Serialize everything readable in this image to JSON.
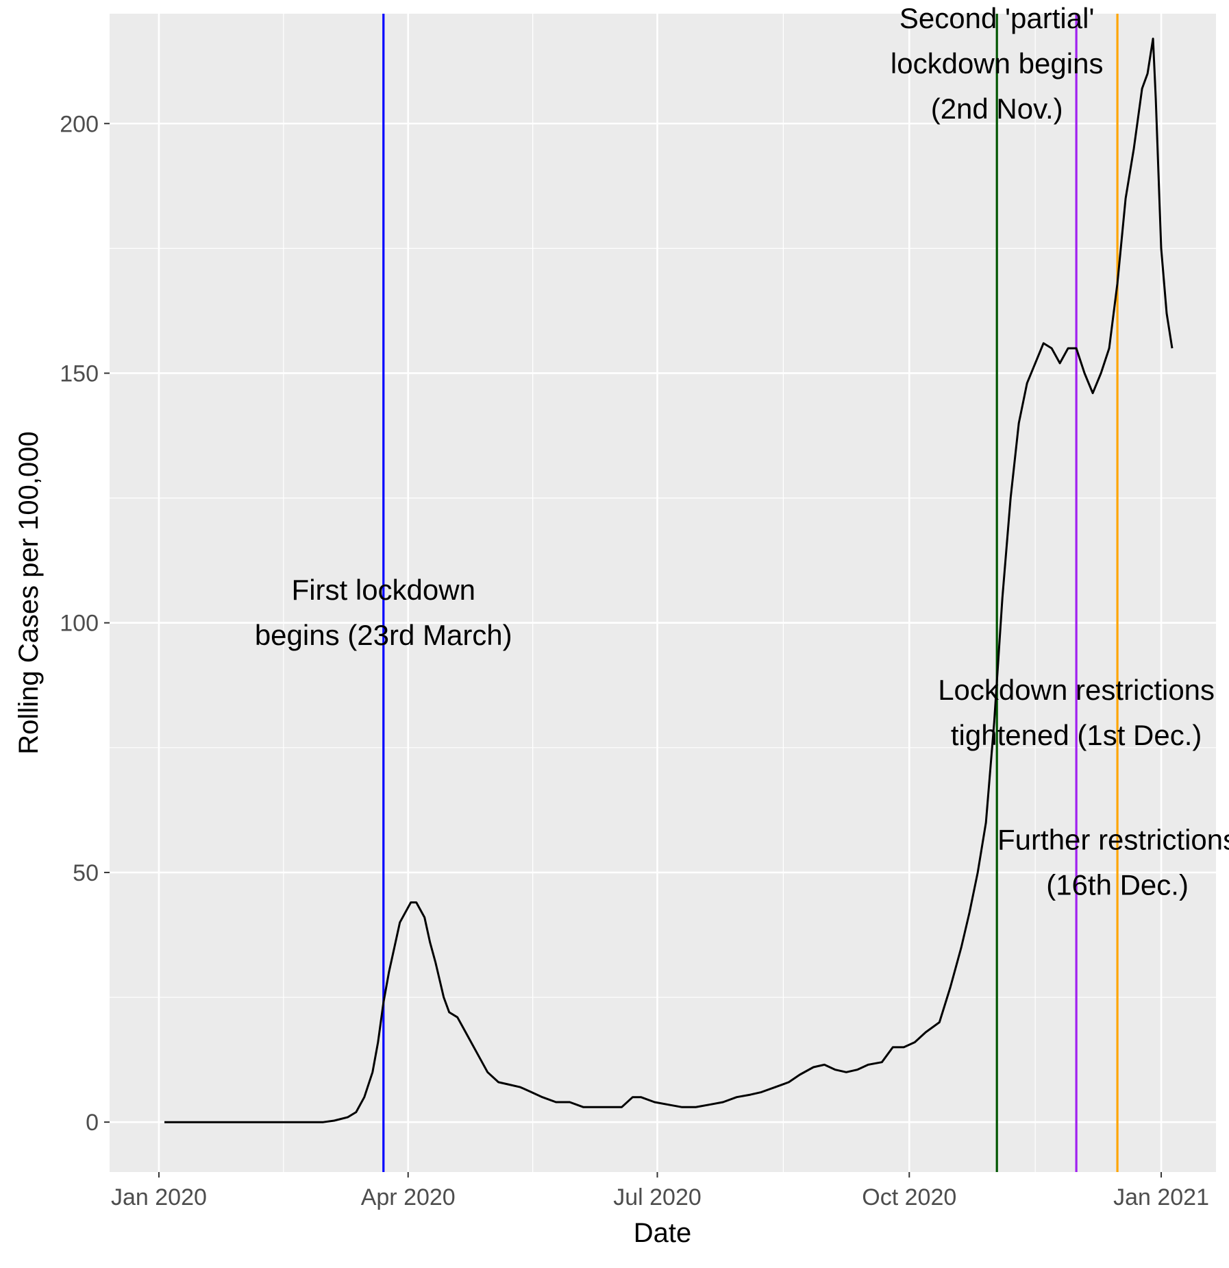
{
  "chart_data": {
    "type": "line",
    "title": "",
    "xlabel": "Date",
    "ylabel": "Rolling Cases per 100,000",
    "x_axis": {
      "scale": "date",
      "range": [
        "2019-12-14",
        "2021-01-21"
      ],
      "ticks": [
        "2020-01-01",
        "2020-04-01",
        "2020-07-01",
        "2020-10-01",
        "2021-01-01"
      ],
      "tick_labels": [
        "Jan 2020",
        "Apr 2020",
        "Jul 2020",
        "Oct 2020",
        "Jan 2021"
      ]
    },
    "y_axis": {
      "range": [
        -10,
        222
      ],
      "ticks": [
        0,
        50,
        100,
        150,
        200
      ],
      "tick_labels": [
        "0",
        "50",
        "100",
        "150",
        "200"
      ]
    },
    "grid": true,
    "panel_background": "#ebebeb",
    "grid_color": "#ffffff",
    "legend": "none",
    "series": [
      {
        "color": "#000000",
        "points": [
          [
            "2020-01-03",
            0
          ],
          [
            "2020-02-15",
            0
          ],
          [
            "2020-03-01",
            0
          ],
          [
            "2020-03-05",
            0.3
          ],
          [
            "2020-03-10",
            1
          ],
          [
            "2020-03-13",
            2
          ],
          [
            "2020-03-16",
            5
          ],
          [
            "2020-03-19",
            10
          ],
          [
            "2020-03-21",
            16
          ],
          [
            "2020-03-23",
            24
          ],
          [
            "2020-03-25",
            30
          ],
          [
            "2020-03-27",
            35
          ],
          [
            "2020-03-29",
            40
          ],
          [
            "2020-03-31",
            42
          ],
          [
            "2020-04-02",
            44
          ],
          [
            "2020-04-04",
            44
          ],
          [
            "2020-04-07",
            41
          ],
          [
            "2020-04-09",
            36
          ],
          [
            "2020-04-11",
            32
          ],
          [
            "2020-04-14",
            25
          ],
          [
            "2020-04-16",
            22
          ],
          [
            "2020-04-19",
            21
          ],
          [
            "2020-04-22",
            18
          ],
          [
            "2020-04-26",
            14
          ],
          [
            "2020-04-30",
            10
          ],
          [
            "2020-05-04",
            8
          ],
          [
            "2020-05-08",
            7.5
          ],
          [
            "2020-05-12",
            7
          ],
          [
            "2020-05-16",
            6
          ],
          [
            "2020-05-20",
            5
          ],
          [
            "2020-05-25",
            4
          ],
          [
            "2020-05-30",
            4
          ],
          [
            "2020-06-04",
            3
          ],
          [
            "2020-06-09",
            3
          ],
          [
            "2020-06-13",
            3
          ],
          [
            "2020-06-18",
            3
          ],
          [
            "2020-06-22",
            5
          ],
          [
            "2020-06-25",
            5
          ],
          [
            "2020-06-30",
            4
          ],
          [
            "2020-07-05",
            3.5
          ],
          [
            "2020-07-10",
            3
          ],
          [
            "2020-07-15",
            3
          ],
          [
            "2020-07-20",
            3.5
          ],
          [
            "2020-07-25",
            4
          ],
          [
            "2020-07-30",
            5
          ],
          [
            "2020-08-04",
            5.5
          ],
          [
            "2020-08-08",
            6
          ],
          [
            "2020-08-13",
            7
          ],
          [
            "2020-08-18",
            8
          ],
          [
            "2020-08-22",
            9.5
          ],
          [
            "2020-08-27",
            11
          ],
          [
            "2020-08-31",
            11.5
          ],
          [
            "2020-09-04",
            10.5
          ],
          [
            "2020-09-08",
            10
          ],
          [
            "2020-09-12",
            10.5
          ],
          [
            "2020-09-16",
            11.5
          ],
          [
            "2020-09-21",
            12
          ],
          [
            "2020-09-25",
            15
          ],
          [
            "2020-09-29",
            15
          ],
          [
            "2020-10-03",
            16
          ],
          [
            "2020-10-07",
            18
          ],
          [
            "2020-10-12",
            20
          ],
          [
            "2020-10-16",
            27
          ],
          [
            "2020-10-20",
            35
          ],
          [
            "2020-10-23",
            42
          ],
          [
            "2020-10-26",
            50
          ],
          [
            "2020-10-29",
            60
          ],
          [
            "2020-11-01",
            80
          ],
          [
            "2020-11-04",
            105
          ],
          [
            "2020-11-07",
            125
          ],
          [
            "2020-11-10",
            140
          ],
          [
            "2020-11-13",
            148
          ],
          [
            "2020-11-16",
            152
          ],
          [
            "2020-11-19",
            156
          ],
          [
            "2020-11-22",
            155
          ],
          [
            "2020-11-25",
            152
          ],
          [
            "2020-11-28",
            155
          ],
          [
            "2020-12-01",
            155
          ],
          [
            "2020-12-04",
            150
          ],
          [
            "2020-12-07",
            146
          ],
          [
            "2020-12-10",
            150
          ],
          [
            "2020-12-13",
            155
          ],
          [
            "2020-12-16",
            168
          ],
          [
            "2020-12-19",
            185
          ],
          [
            "2020-12-22",
            195
          ],
          [
            "2020-12-25",
            207
          ],
          [
            "2020-12-27",
            210
          ],
          [
            "2020-12-29",
            217
          ],
          [
            "2020-12-30",
            205
          ],
          [
            "2021-01-01",
            175
          ],
          [
            "2021-01-03",
            162
          ],
          [
            "2021-01-05",
            155
          ]
        ]
      }
    ],
    "vertical_lines": [
      {
        "date": "2020-03-23",
        "color": "#0000ff"
      },
      {
        "date": "2020-11-02",
        "color": "#005500"
      },
      {
        "date": "2020-12-01",
        "color": "#a020f0"
      },
      {
        "date": "2020-12-16",
        "color": "#ffa500"
      }
    ],
    "annotations": [
      {
        "lines": [
          "First lockdown",
          "begins (23rd March)"
        ],
        "date": "2020-03-23",
        "y": 102
      },
      {
        "lines": [
          "Second 'partial'",
          "lockdown begins",
          "(2nd Nov.)"
        ],
        "date": "2020-11-02",
        "y": 212
      },
      {
        "lines": [
          "Lockdown restrictions",
          "tightened (1st Dec.)"
        ],
        "date": "2020-12-01",
        "y": 82
      },
      {
        "lines": [
          "Further restrictions",
          "(16th Dec.)"
        ],
        "date": "2020-12-16",
        "y": 52
      }
    ]
  }
}
